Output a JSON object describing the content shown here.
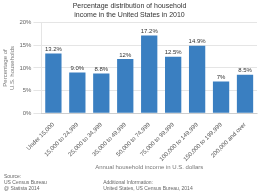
{
  "chart_data": {
    "type": "bar",
    "title": "Percentage distribution of household income in the United States in 2010",
    "xlabel": "Annual household income in U.S. dollars",
    "ylabel": "Percentage of U.S. households",
    "categories": [
      "Under 15,000",
      "15,000 to 24,999",
      "25,000 to 34,999",
      "35,000 to 49,999",
      "50,000 to 74,999",
      "75,000 to 99,999",
      "100,000 to 149,999",
      "150,000 to 199,999",
      "200,000 and over"
    ],
    "values": [
      13.2,
      9.0,
      8.8,
      12.0,
      17.2,
      12.5,
      14.9,
      7.0,
      8.5
    ],
    "value_labels": [
      "13.2%",
      "9.0%",
      "8.8%",
      "12%",
      "17.2%",
      "12.5%",
      "14.9%",
      "7%",
      "8.5%"
    ],
    "data_labels": true,
    "color": "#3a7fc1",
    "ylim": [
      0,
      20
    ],
    "yticks": [
      {
        "value": 0,
        "label": "0%"
      },
      {
        "value": 5,
        "label": "5%"
      },
      {
        "value": 10,
        "label": "10%"
      },
      {
        "value": 15,
        "label": "15%"
      },
      {
        "value": 20,
        "label": "20%"
      }
    ],
    "grid": true,
    "annotations": [
      "Source:\nUS Census Bureau\n@ Statista 2014",
      "Additional Information:\nUnited States, US Census Bureau, 2014"
    ]
  }
}
